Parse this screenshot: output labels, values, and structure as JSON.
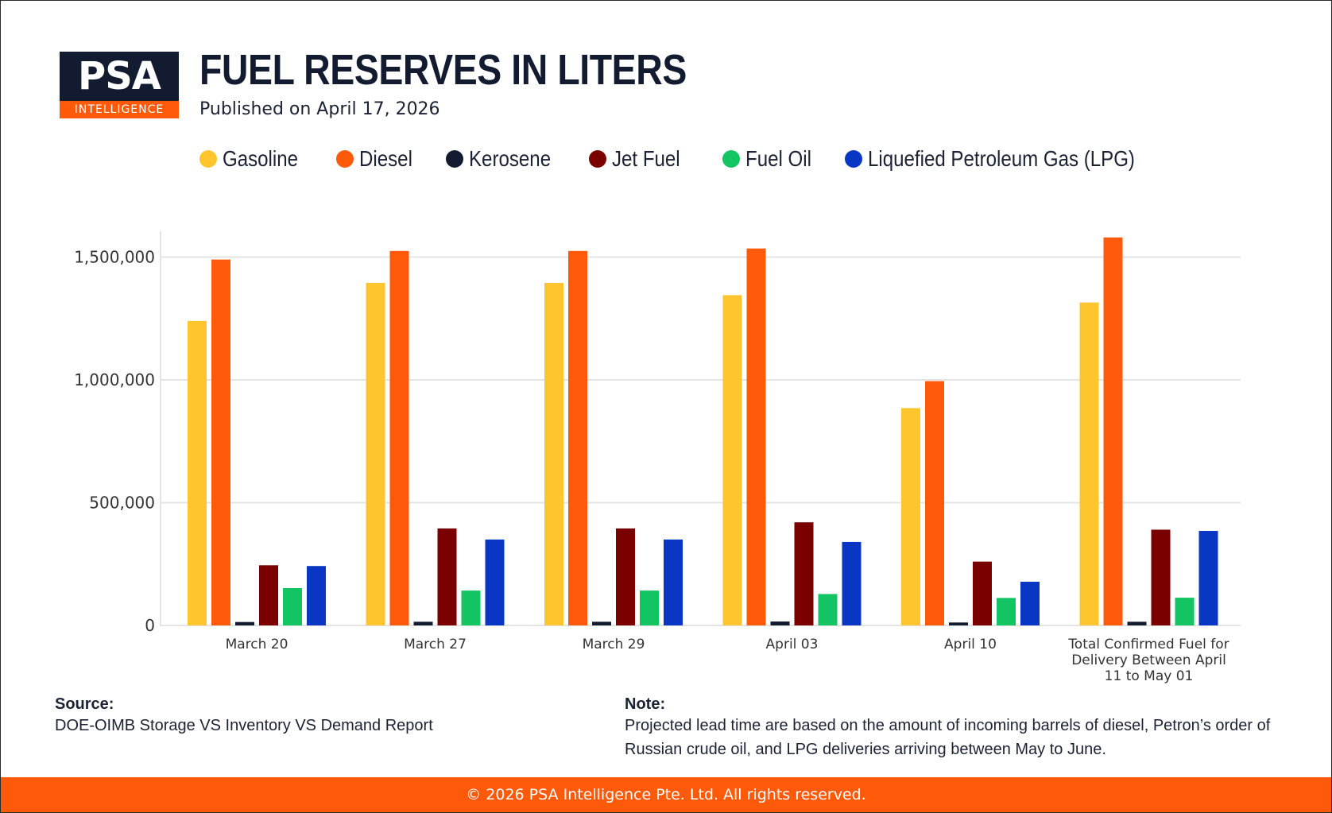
{
  "brand": {
    "logo_main": "PSA",
    "logo_sub": "INTELLIGENCE",
    "colors": {
      "navy": "#121b30",
      "orange": "#ff5a0a"
    }
  },
  "header": {
    "title": "FUEL RESERVES IN LITERS",
    "subtitle": "Published on April 17, 2026"
  },
  "chart_data": {
    "type": "bar",
    "categories": [
      "March 20",
      "March 27",
      "March 29",
      "April 03",
      "April 10",
      "Total Confirmed Fuel for Delivery Between April 11 to May 01"
    ],
    "category_lines": [
      [
        "March 20"
      ],
      [
        "March 27"
      ],
      [
        "March 29"
      ],
      [
        "April 03"
      ],
      [
        "April 10"
      ],
      [
        "Total Confirmed Fuel for",
        "Delivery Between April",
        "11 to May 01"
      ]
    ],
    "series": [
      {
        "name": "Gasoline",
        "color": "#fec52e",
        "values": [
          1240000,
          1395000,
          1395000,
          1345000,
          885000,
          1315000
        ]
      },
      {
        "name": "Diesel",
        "color": "#ff5a0a",
        "values": [
          1490000,
          1525000,
          1525000,
          1535000,
          995000,
          1580000
        ]
      },
      {
        "name": "Kerosene",
        "color": "#121b30",
        "values": [
          14000,
          15000,
          15000,
          16000,
          12000,
          15000
        ]
      },
      {
        "name": "Jet Fuel",
        "color": "#7a0000",
        "values": [
          245000,
          395000,
          395000,
          420000,
          260000,
          390000
        ]
      },
      {
        "name": "Fuel Oil",
        "color": "#12c462",
        "values": [
          152000,
          142000,
          142000,
          128000,
          112000,
          113000
        ]
      },
      {
        "name": "Liquefied Petroleum Gas (LPG)",
        "color": "#0a36c4",
        "values": [
          242000,
          350000,
          350000,
          340000,
          178000,
          385000
        ]
      }
    ],
    "yticks": [
      0,
      500000,
      1000000,
      1500000
    ],
    "ytick_labels": [
      "0",
      "500,000",
      "1,000,000",
      "1,500,000"
    ],
    "ylim": [
      0,
      1600000
    ],
    "grid": true,
    "legend": "top"
  },
  "notes": {
    "source_label": "Source:",
    "source_text": "DOE-OIMB Storage VS Inventory VS Demand Report",
    "note_label": "Note:",
    "note_text": "Projected lead time are based on the amount of incoming barrels of diesel, Petron’s order of Russian crude oil, and LPG deliveries arriving between May to June."
  },
  "footer": {
    "text": "© 2026 PSA Intelligence Pte. Ltd. All rights reserved."
  }
}
